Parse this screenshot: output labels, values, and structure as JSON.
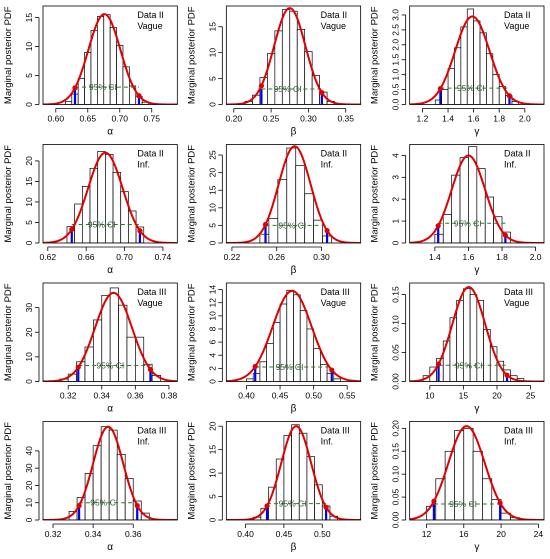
{
  "layout": {
    "rows": 4,
    "cols": 3
  },
  "style": {
    "curve_color": "#e00000",
    "ci_color": "#2f7a2f",
    "ci_tick_color": "#0000ee",
    "bar_color": "#ffffff"
  },
  "ci_label": "95% CI",
  "ylabel": "Marginal posterior PDF",
  "chart_data": [
    {
      "type": "bar",
      "panel": "1-1",
      "legend": [
        "Data II",
        "Vague"
      ],
      "xlabel": "α",
      "xlim": [
        0.58,
        0.79
      ],
      "ylim": [
        0,
        17
      ],
      "xticks": [
        0.6,
        0.65,
        0.7,
        0.75
      ],
      "xticklabels": [
        "0.60",
        "0.65",
        "0.70",
        "0.75"
      ],
      "yticks": [
        0,
        5,
        10,
        15
      ],
      "yticklabels": [
        "0",
        "5",
        "10",
        "15"
      ],
      "bins": [
        [
          0.615,
          0.625,
          0.5
        ],
        [
          0.625,
          0.635,
          1.8
        ],
        [
          0.635,
          0.645,
          4.5
        ],
        [
          0.645,
          0.655,
          9.0
        ],
        [
          0.655,
          0.665,
          12.8
        ],
        [
          0.665,
          0.675,
          15.2
        ],
        [
          0.675,
          0.685,
          15.5
        ],
        [
          0.685,
          0.695,
          13.3
        ],
        [
          0.695,
          0.705,
          10.2
        ],
        [
          0.705,
          0.715,
          6.5
        ],
        [
          0.715,
          0.725,
          3.2
        ],
        [
          0.725,
          0.735,
          1.4
        ],
        [
          0.735,
          0.745,
          0.4
        ]
      ],
      "curve": {
        "mean": 0.676,
        "sd": 0.025,
        "peak": 15.6
      },
      "ci": [
        0.63,
        0.73
      ],
      "ci_y": 3.0
    },
    {
      "type": "bar",
      "panel": "1-2",
      "legend": [
        "Data II",
        "Vague"
      ],
      "xlabel": "β",
      "xlim": [
        0.19,
        0.37
      ],
      "ylim": [
        0,
        19
      ],
      "xticks": [
        0.2,
        0.25,
        0.3,
        0.35
      ],
      "xticklabels": [
        "0.20",
        "0.25",
        "0.30",
        "0.35"
      ],
      "yticks": [
        0,
        5,
        10,
        15
      ],
      "yticklabels": [
        "0",
        "5",
        "10",
        "15"
      ],
      "bins": [
        [
          0.215,
          0.225,
          0.6
        ],
        [
          0.225,
          0.235,
          1.8
        ],
        [
          0.235,
          0.245,
          5.2
        ],
        [
          0.245,
          0.255,
          9.8
        ],
        [
          0.255,
          0.265,
          14.2
        ],
        [
          0.265,
          0.275,
          18.3
        ],
        [
          0.275,
          0.285,
          18.0
        ],
        [
          0.285,
          0.295,
          14.5
        ],
        [
          0.295,
          0.305,
          10.2
        ],
        [
          0.305,
          0.315,
          5.6
        ],
        [
          0.315,
          0.325,
          2.4
        ],
        [
          0.325,
          0.335,
          0.6
        ]
      ],
      "curve": {
        "mean": 0.275,
        "sd": 0.021,
        "peak": 18.6
      },
      "ci": [
        0.237,
        0.318
      ],
      "ci_y": 3.0
    },
    {
      "type": "bar",
      "panel": "1-3",
      "legend": [
        "Data II",
        "Vague"
      ],
      "xlabel": "γ",
      "xlim": [
        1.1,
        2.15
      ],
      "ylim": [
        0,
        3.3
      ],
      "xticks": [
        1.2,
        1.4,
        1.6,
        1.8,
        2.0
      ],
      "xticklabels": [
        "1.2",
        "1.4",
        "1.6",
        "1.8",
        "2.0"
      ],
      "yticks": [
        0,
        0.5,
        1.0,
        1.5,
        2.0,
        2.5,
        3.0
      ],
      "yticklabels": [
        "0.0",
        "0.5",
        "1.0",
        "1.5",
        "2.0",
        "2.5",
        "3.0"
      ],
      "bins": [
        [
          1.3,
          1.35,
          0.15
        ],
        [
          1.35,
          1.4,
          0.5
        ],
        [
          1.4,
          1.45,
          1.2
        ],
        [
          1.45,
          1.5,
          1.9
        ],
        [
          1.5,
          1.55,
          2.6
        ],
        [
          1.55,
          1.6,
          3.2
        ],
        [
          1.6,
          1.65,
          2.8
        ],
        [
          1.65,
          1.7,
          2.4
        ],
        [
          1.7,
          1.75,
          1.7
        ],
        [
          1.75,
          1.8,
          1.0
        ],
        [
          1.8,
          1.85,
          0.6
        ],
        [
          1.85,
          1.9,
          0.3
        ],
        [
          1.9,
          1.95,
          0.1
        ]
      ],
      "curve": {
        "mean": 1.59,
        "sd": 0.135,
        "peak": 2.95
      },
      "ci": [
        1.34,
        1.88
      ],
      "ci_y": 0.55
    },
    {
      "type": "bar",
      "panel": "2-1",
      "legend": [
        "Data II",
        "Inf."
      ],
      "xlabel": "α",
      "xlim": [
        0.615,
        0.755
      ],
      "ylim": [
        0,
        24
      ],
      "xticks": [
        0.62,
        0.66,
        0.7,
        0.74
      ],
      "xticklabels": [
        "0.62",
        "0.66",
        "0.70",
        "0.74"
      ],
      "yticks": [
        0,
        5,
        10,
        15,
        20
      ],
      "yticklabels": [
        "0",
        "5",
        "10",
        "15",
        "20"
      ],
      "bins": [
        [
          0.64,
          0.648,
          4.0
        ],
        [
          0.648,
          0.656,
          9.5
        ],
        [
          0.656,
          0.664,
          13.8
        ],
        [
          0.664,
          0.672,
          18.2
        ],
        [
          0.672,
          0.68,
          22.3
        ],
        [
          0.68,
          0.688,
          21.6
        ],
        [
          0.688,
          0.696,
          17.2
        ],
        [
          0.696,
          0.704,
          12.5
        ],
        [
          0.704,
          0.712,
          7.8
        ],
        [
          0.712,
          0.72,
          3.9
        ]
      ],
      "curve": {
        "mean": 0.68,
        "sd": 0.018,
        "peak": 22.0
      },
      "ci": [
        0.645,
        0.716
      ],
      "ci_y": 4.5
    },
    {
      "type": "bar",
      "panel": "2-2",
      "legend": [
        "Data II",
        "Inf."
      ],
      "xlabel": "β",
      "xlim": [
        0.215,
        0.335
      ],
      "ylim": [
        0,
        28
      ],
      "xticks": [
        0.22,
        0.26,
        0.3
      ],
      "xticklabels": [
        "0.22",
        "0.26",
        "0.30"
      ],
      "yticks": [
        0,
        5,
        10,
        15,
        20,
        25
      ],
      "yticklabels": [
        "0",
        "5",
        "10",
        "15",
        "20",
        "25"
      ],
      "bins": [
        [
          0.245,
          0.253,
          2.5
        ],
        [
          0.253,
          0.261,
          7.0
        ],
        [
          0.261,
          0.269,
          18.0
        ],
        [
          0.269,
          0.277,
          27.0
        ],
        [
          0.277,
          0.285,
          22.0
        ],
        [
          0.285,
          0.293,
          14.0
        ],
        [
          0.293,
          0.301,
          6.5
        ],
        [
          0.301,
          0.309,
          2.0
        ]
      ],
      "curve": {
        "mean": 0.276,
        "sd": 0.0143,
        "peak": 27.5
      },
      "ci": [
        0.25,
        0.305
      ],
      "ci_y": 5.0
    },
    {
      "type": "bar",
      "panel": "2-3",
      "legend": [
        "Data II",
        "Inf."
      ],
      "xlabel": "γ",
      "xlim": [
        1.25,
        2.05
      ],
      "ylim": [
        0,
        4.5
      ],
      "xticks": [
        1.4,
        1.6,
        1.8,
        2.0
      ],
      "xticklabels": [
        "1.4",
        "1.6",
        "1.8",
        "2.0"
      ],
      "yticks": [
        0,
        1,
        2,
        3,
        4
      ],
      "yticklabels": [
        "0",
        "1",
        "2",
        "3",
        "4"
      ],
      "bins": [
        [
          1.4,
          1.45,
          0.4
        ],
        [
          1.45,
          1.5,
          1.3
        ],
        [
          1.5,
          1.55,
          3.1
        ],
        [
          1.55,
          1.6,
          3.9
        ],
        [
          1.6,
          1.65,
          4.4
        ],
        [
          1.65,
          1.7,
          3.4
        ],
        [
          1.7,
          1.75,
          2.1
        ],
        [
          1.75,
          1.8,
          1.2
        ],
        [
          1.8,
          1.85,
          0.5
        ]
      ],
      "curve": {
        "mean": 1.6,
        "sd": 0.1,
        "peak": 4.0
      },
      "ci": [
        1.42,
        1.82
      ],
      "ci_y": 0.9
    },
    {
      "type": "bar",
      "panel": "3-1",
      "legend": [
        "Data III",
        "Vague"
      ],
      "xlabel": "α",
      "xlim": [
        0.305,
        0.385
      ],
      "ylim": [
        0,
        40
      ],
      "xticks": [
        0.32,
        0.34,
        0.36,
        0.38
      ],
      "xticklabels": [
        "0.32",
        "0.34",
        "0.36",
        "0.38"
      ],
      "yticks": [
        0,
        10,
        20,
        30
      ],
      "yticklabels": [
        "0",
        "10",
        "20",
        "30"
      ],
      "bins": [
        [
          0.315,
          0.32,
          1.0
        ],
        [
          0.32,
          0.325,
          3.0
        ],
        [
          0.325,
          0.33,
          8.0
        ],
        [
          0.33,
          0.335,
          14.0
        ],
        [
          0.335,
          0.34,
          25.0
        ],
        [
          0.34,
          0.345,
          35.0
        ],
        [
          0.345,
          0.35,
          38.0
        ],
        [
          0.35,
          0.355,
          31.0
        ],
        [
          0.355,
          0.36,
          18.0
        ],
        [
          0.36,
          0.365,
          18.0
        ],
        [
          0.365,
          0.37,
          7.0
        ],
        [
          0.37,
          0.375,
          2.5
        ]
      ],
      "curve": {
        "mean": 0.347,
        "sd": 0.011,
        "peak": 36.0
      },
      "ci": [
        0.326,
        0.369
      ],
      "ci_y": 6.5
    },
    {
      "type": "bar",
      "panel": "3-2",
      "legend": [
        "Data III",
        "Vague"
      ],
      "xlabel": "β",
      "xlim": [
        0.37,
        0.57
      ],
      "ylim": [
        0,
        15
      ],
      "xticks": [
        0.4,
        0.45,
        0.5,
        0.55
      ],
      "xticklabels": [
        "0.40",
        "0.45",
        "0.50",
        "0.55"
      ],
      "yticks": [
        0,
        2,
        4,
        6,
        8,
        10,
        12,
        14
      ],
      "yticklabels": [
        "0",
        "2",
        "4",
        "6",
        "8",
        "10",
        "12",
        "14"
      ],
      "bins": [
        [
          0.4,
          0.41,
          0.4
        ],
        [
          0.41,
          0.42,
          1.2
        ],
        [
          0.42,
          0.43,
          3.0
        ],
        [
          0.43,
          0.44,
          5.8
        ],
        [
          0.44,
          0.45,
          9.0
        ],
        [
          0.45,
          0.46,
          11.8
        ],
        [
          0.46,
          0.47,
          13.9
        ],
        [
          0.47,
          0.48,
          13.2
        ],
        [
          0.48,
          0.49,
          10.8
        ],
        [
          0.49,
          0.5,
          8.0
        ],
        [
          0.5,
          0.51,
          5.0
        ],
        [
          0.51,
          0.52,
          2.6
        ],
        [
          0.52,
          0.53,
          1.2
        ],
        [
          0.53,
          0.54,
          0.4
        ]
      ],
      "curve": {
        "mean": 0.468,
        "sd": 0.029,
        "peak": 13.8
      },
      "ci": [
        0.413,
        0.527
      ],
      "ci_y": 2.2
    },
    {
      "type": "bar",
      "panel": "3-3",
      "legend": [
        "Data III",
        "Vague"
      ],
      "xlabel": "γ",
      "xlim": [
        7,
        27
      ],
      "ylim": [
        0,
        0.17
      ],
      "xticks": [
        10,
        15,
        20,
        25
      ],
      "xticklabels": [
        "10",
        "15",
        "20",
        "25"
      ],
      "yticks": [
        0,
        0.05,
        0.1,
        0.15
      ],
      "yticklabels": [
        "0.00",
        "0.05",
        "0.10",
        "0.15"
      ],
      "bins": [
        [
          9,
          10,
          0.01
        ],
        [
          10,
          11,
          0.025
        ],
        [
          11,
          12,
          0.04
        ],
        [
          12,
          13,
          0.07
        ],
        [
          13,
          14,
          0.11
        ],
        [
          14,
          15,
          0.14
        ],
        [
          15,
          16,
          0.16
        ],
        [
          16,
          17,
          0.15
        ],
        [
          17,
          18,
          0.14
        ],
        [
          18,
          19,
          0.09
        ],
        [
          19,
          20,
          0.06
        ],
        [
          20,
          21,
          0.035
        ],
        [
          21,
          22,
          0.02
        ],
        [
          22,
          23,
          0.01
        ],
        [
          23,
          24,
          0.005
        ]
      ],
      "curve": {
        "mean": 15.8,
        "sd": 2.45,
        "peak": 0.163
      },
      "ci": [
        11.3,
        21.5
      ],
      "ci_y": 0.028
    },
    {
      "type": "bar",
      "panel": "4-1",
      "legend": [
        "Data III",
        "Inf."
      ],
      "xlabel": "α",
      "xlim": [
        0.315,
        0.382
      ],
      "ylim": [
        0,
        57
      ],
      "xticks": [
        0.32,
        0.34,
        0.36
      ],
      "xticklabels": [
        "0.32",
        "0.34",
        "0.36"
      ],
      "yticks": [
        0,
        10,
        20,
        30,
        40
      ],
      "yticklabels": [
        "0",
        "10",
        "20",
        "30",
        "40"
      ],
      "bins": [
        [
          0.328,
          0.332,
          5.0
        ],
        [
          0.332,
          0.336,
          13.0
        ],
        [
          0.336,
          0.34,
          27.0
        ],
        [
          0.34,
          0.344,
          43.0
        ],
        [
          0.344,
          0.348,
          54.0
        ],
        [
          0.348,
          0.352,
          52.0
        ],
        [
          0.352,
          0.356,
          38.0
        ],
        [
          0.356,
          0.36,
          24.0
        ],
        [
          0.36,
          0.364,
          11.0
        ],
        [
          0.364,
          0.368,
          4.0
        ]
      ],
      "curve": {
        "mean": 0.3475,
        "sd": 0.0075,
        "peak": 54.0
      },
      "ci": [
        0.333,
        0.362
      ],
      "ci_y": 10.0
    },
    {
      "type": "bar",
      "panel": "4-2",
      "legend": [
        "Data III",
        "Inf."
      ],
      "xlabel": "β",
      "xlim": [
        0.375,
        0.55
      ],
      "ylim": [
        0,
        21
      ],
      "xticks": [
        0.4,
        0.45,
        0.5
      ],
      "xticklabels": [
        "0.40",
        "0.45",
        "0.50"
      ],
      "yticks": [
        0,
        5,
        10,
        15,
        20
      ],
      "yticklabels": [
        "0",
        "5",
        "10",
        "15",
        "20"
      ],
      "bins": [
        [
          0.41,
          0.42,
          0.6
        ],
        [
          0.42,
          0.43,
          2.5
        ],
        [
          0.43,
          0.44,
          7.0
        ],
        [
          0.44,
          0.45,
          13.0
        ],
        [
          0.45,
          0.46,
          18.0
        ],
        [
          0.46,
          0.47,
          20.3
        ],
        [
          0.47,
          0.48,
          18.5
        ],
        [
          0.48,
          0.49,
          13.5
        ],
        [
          0.49,
          0.5,
          7.5
        ],
        [
          0.5,
          0.51,
          3.0
        ],
        [
          0.51,
          0.52,
          0.8
        ]
      ],
      "curve": {
        "mean": 0.466,
        "sd": 0.0195,
        "peak": 20.0
      },
      "ci": [
        0.428,
        0.505
      ],
      "ci_y": 3.5
    },
    {
      "type": "bar",
      "panel": "4-3",
      "legend": [
        "Data III",
        "Inf."
      ],
      "xlabel": "γ",
      "xlim": [
        10.2,
        24.6
      ],
      "ylim": [
        0,
        0.215
      ],
      "xticks": [
        12,
        16,
        20,
        24
      ],
      "xticklabels": [
        "12",
        "16",
        "20",
        "24"
      ],
      "yticks": [
        0,
        0.05,
        0.1,
        0.15,
        0.2
      ],
      "yticklabels": [
        "0.00",
        "0.05",
        "0.10",
        "0.15",
        "0.20"
      ],
      "bins": [
        [
          12,
          13,
          0.03
        ],
        [
          13,
          14,
          0.09
        ],
        [
          14,
          15,
          0.15
        ],
        [
          15,
          16,
          0.195
        ],
        [
          16,
          17,
          0.2
        ],
        [
          17,
          18,
          0.15
        ],
        [
          18,
          19,
          0.09
        ],
        [
          19,
          20,
          0.045
        ],
        [
          20,
          21,
          0.015
        ],
        [
          21,
          22,
          0.005
        ]
      ],
      "curve": {
        "mean": 16.3,
        "sd": 1.95,
        "peak": 0.205
      },
      "ci": [
        12.8,
        19.9
      ],
      "ci_y": 0.035
    }
  ]
}
